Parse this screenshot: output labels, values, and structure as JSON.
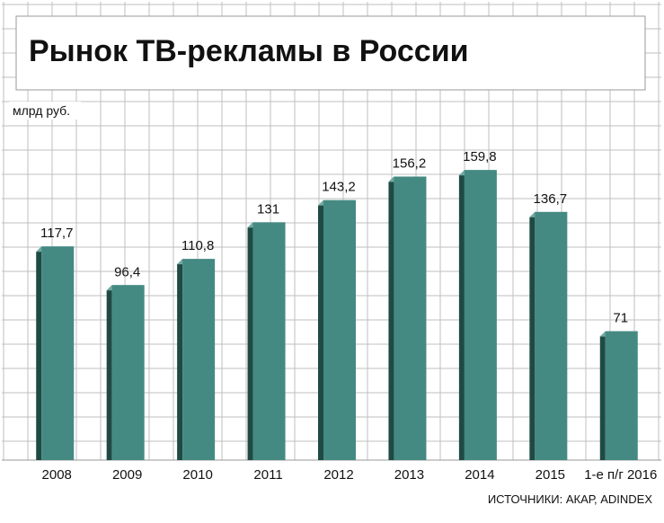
{
  "chart_data": {
    "type": "bar",
    "title": "Рынок ТВ-рекламы в России",
    "unit_label": "млрд руб.",
    "categories": [
      "2008",
      "2009",
      "2010",
      "2011",
      "2012",
      "2013",
      "2014",
      "2015",
      "1-е п/г 2016"
    ],
    "values": [
      117.7,
      96.4,
      110.8,
      131,
      143.2,
      156.2,
      159.8,
      136.7,
      71
    ],
    "value_labels": [
      "117,7",
      "96,4",
      "110,8",
      "131",
      "143,2",
      "156,2",
      "159,8",
      "136,7",
      "71"
    ],
    "ylim": [
      0,
      200
    ],
    "grid": true,
    "source": "ИСТОЧНИКИ: АКАР, ADINDEX",
    "colors": {
      "bar_face": "#458A82",
      "bar_side": "#1F4A44",
      "bar_top": "#6FAAA2",
      "grid": "#BFBFBF",
      "text": "#111111"
    }
  }
}
